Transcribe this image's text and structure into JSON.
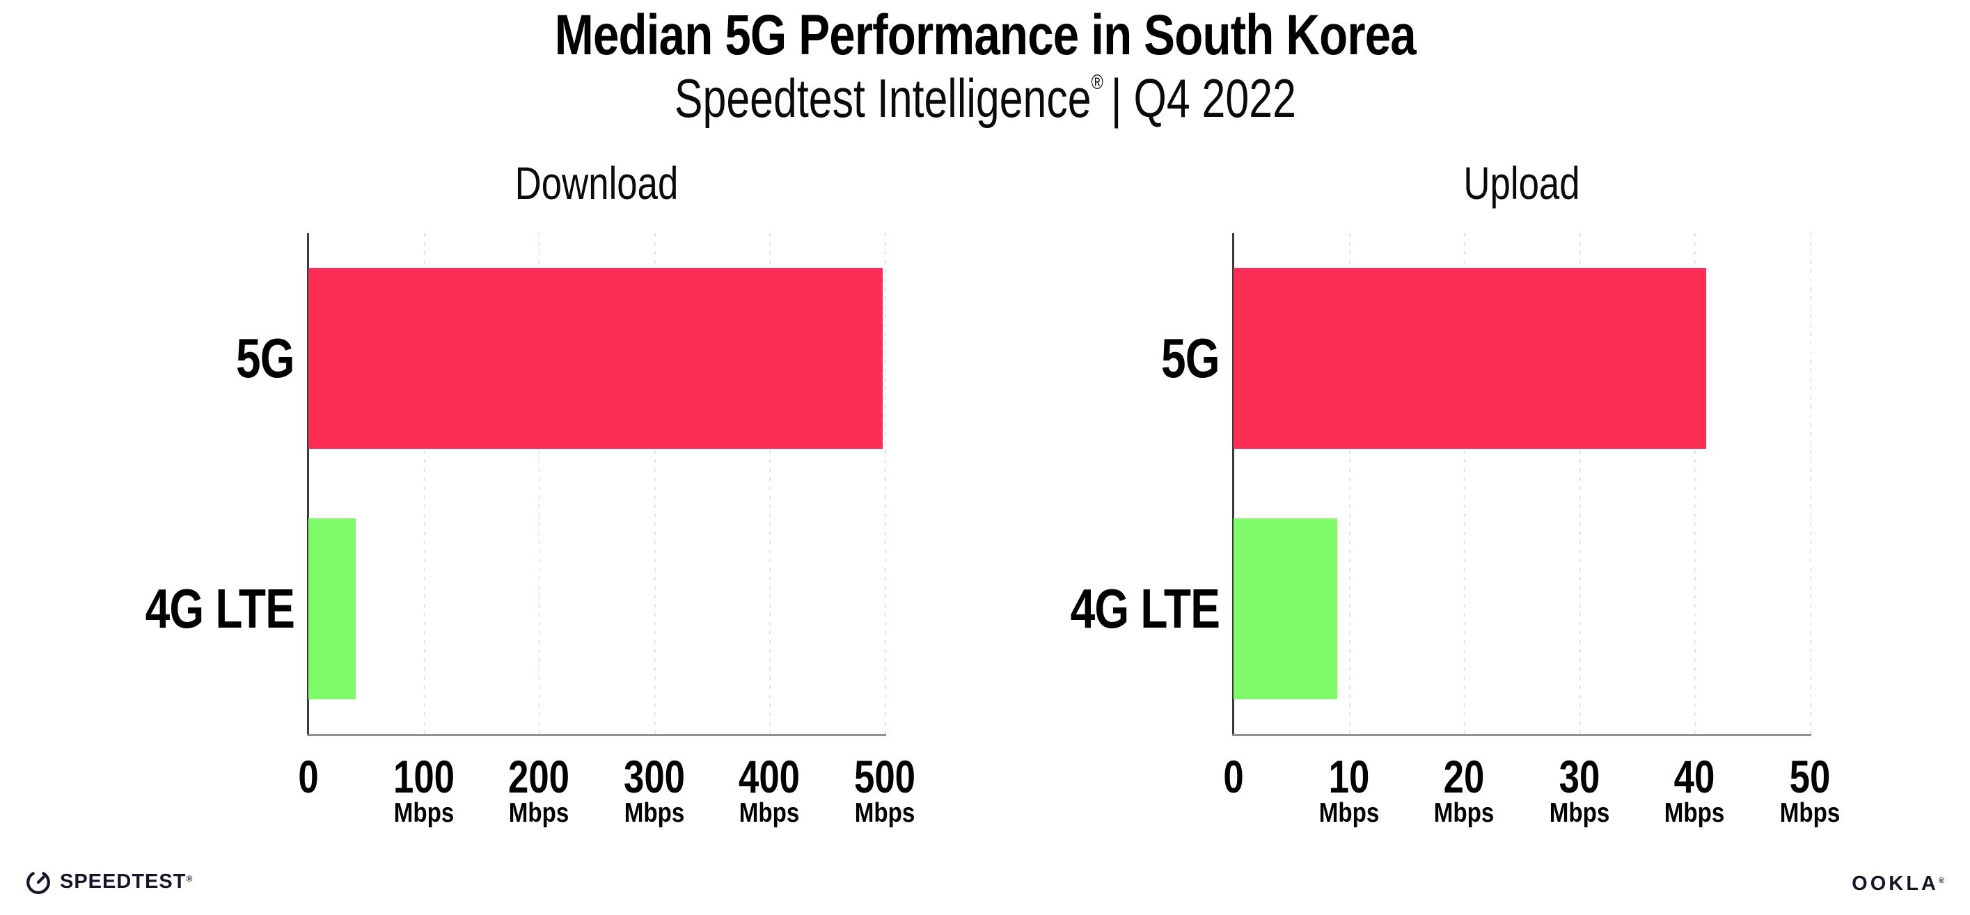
{
  "header": {
    "title": "Median 5G Performance in South Korea",
    "subtitle_brand": "Speedtest Intelligence",
    "subtitle_mark": "®",
    "subtitle_rest": "| Q4 2022"
  },
  "chart_data": [
    {
      "type": "bar",
      "orientation": "horizontal",
      "title": "Download",
      "categories": [
        "5G",
        "4G LTE"
      ],
      "values": [
        498,
        41
      ],
      "unit": "Mbps",
      "xlim": [
        0,
        500
      ],
      "xticks": [
        0,
        100,
        200,
        300,
        400,
        500
      ],
      "bar_colors": [
        "#FD2D54",
        "#7FFB67"
      ],
      "grid": "dotted-vertical",
      "legend": "none"
    },
    {
      "type": "bar",
      "orientation": "horizontal",
      "title": "Upload",
      "categories": [
        "5G",
        "4G LTE"
      ],
      "values": [
        41,
        9
      ],
      "unit": "Mbps",
      "xlim": [
        0,
        50
      ],
      "xticks": [
        0,
        10,
        20,
        30,
        40,
        50
      ],
      "bar_colors": [
        "#FD2D54",
        "#7FFB67"
      ],
      "grid": "dotted-vertical",
      "legend": "none"
    }
  ],
  "colors": {
    "bar_5g": "#FD2D54",
    "bar_4g_lte": "#7FFB67",
    "y_axis_line": "#3A3A3A",
    "x_axis_line": "#8F8F8F",
    "gridline": "#E4E4EC",
    "text": "#000000"
  },
  "footer": {
    "speedtest_logo_text": "SPEEDTEST",
    "speedtest_mark": "®",
    "ookla_logo_text": "OOKLA",
    "ookla_mark": "®"
  }
}
